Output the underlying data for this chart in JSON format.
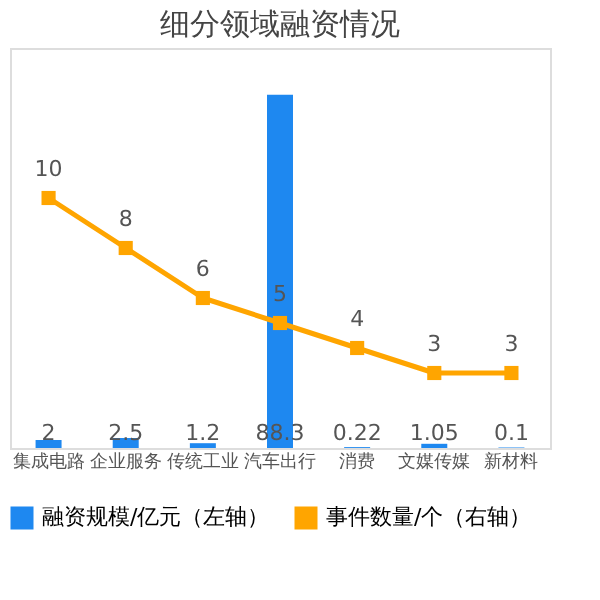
{
  "chart_data": {
    "type": "bar",
    "title": "细分领域融资情况",
    "categories": [
      "集成电路",
      "企业服务",
      "传统工业",
      "汽车出行",
      "消费",
      "文媒传媒",
      "新材料"
    ],
    "series": [
      {
        "name": "融资规模/亿元（左轴）",
        "color": "#1e88f0",
        "values": [
          2,
          2.5,
          1.2,
          88.3,
          0.22,
          1.05,
          0.1
        ]
      },
      {
        "name": "事件数量/个（右轴）",
        "type": "line",
        "axis": "y2",
        "color": "#ffa500",
        "values": [
          10,
          8,
          6,
          5,
          4,
          3,
          3
        ]
      }
    ],
    "ylim": [
      0,
      100
    ],
    "y2lim": [
      0,
      16
    ],
    "tick_labels": "x",
    "data_labels": true,
    "marker": "square",
    "legend": "bottom",
    "grid": false
  }
}
